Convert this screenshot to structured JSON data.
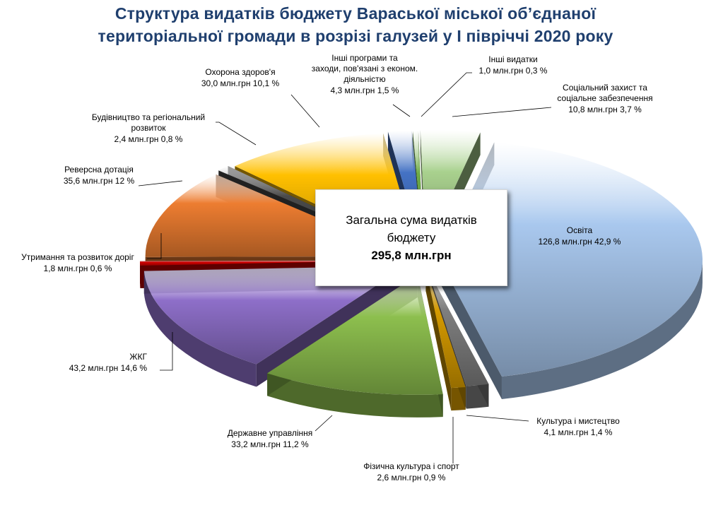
{
  "chart_data": {
    "type": "pie",
    "title": [
      "Структура видатків бюджету Вараської міської об’єднаної",
      "територіальної громади в розрізі галузей у  І півріччі 2020 року"
    ],
    "center_label": {
      "line1": "Загальна  сума видатків",
      "line2": "бюджету",
      "total": "295,8 млн.грн"
    },
    "slices": [
      {
        "name": "Освіта",
        "value": 126.8,
        "percent": 42.9,
        "value_label": "126,8 млн.грн   42,9 %",
        "color": "#a9c8ee"
      },
      {
        "name": "Культура і мистецтво",
        "value": 4.1,
        "percent": 1.4,
        "value_label": "4,1 млн.грн   1,4 %",
        "color": "#7f7f7f"
      },
      {
        "name": "Фізична культура і спорт",
        "value": 2.6,
        "percent": 0.9,
        "value_label": "2,6 млн.грн   0,9 %",
        "color": "#d69b00"
      },
      {
        "name": "Державне управління",
        "value": 33.2,
        "percent": 11.2,
        "value_label": "33,2 млн.грн   11,2 %",
        "color": "#8dbf4e"
      },
      {
        "name": "ЖКГ",
        "value": 43.2,
        "percent": 14.6,
        "value_label": "43,2 млн.грн  14,6 %",
        "color": "#8e6fc9"
      },
      {
        "name": "Утримання та розвиток доріг",
        "value": 1.8,
        "percent": 0.6,
        "value_label": "1,8 млн.грн   0,6 %",
        "color": "#d10000"
      },
      {
        "name": "Реверсна дотація",
        "value": 35.6,
        "percent": 12,
        "value_label": "35,6 млн.грн  12 %",
        "color": "#ed7d31"
      },
      {
        "name": "Будівництво та регіональний розвиток",
        "value": 2.4,
        "percent": 0.8,
        "value_label": "2,4 млн.грн   0,8 %",
        "color": "#4a4a4a"
      },
      {
        "name": "Охорона здоров'я",
        "value": 30.0,
        "percent": 10.1,
        "value_label": "30,0 млн.грн  10,1 %",
        "color": "#ffc000"
      },
      {
        "name": "Інші програми та заходи, пов'язані з економ. діяльністю",
        "value": 4.3,
        "percent": 1.5,
        "value_label": "4,3 млн.грн   1,5 %",
        "color": "#4472c4"
      },
      {
        "name": "Інші видатки",
        "value": 1.0,
        "percent": 0.3,
        "value_label": "1,0 млн.грн  0,3 %",
        "color": "#70ad47"
      },
      {
        "name": "Соціальний захист та соціальне забезпечення",
        "value": 10.8,
        "percent": 3.7,
        "value_label": "10,8  млн.грн 3,7 %",
        "color": "#a9d18e"
      }
    ],
    "label_lines": {
      "Освіта": [
        "Освіта"
      ],
      "Культура і мистецтво": [
        "Культура і мистецтво"
      ],
      "Фізична культура і спорт": [
        "Фізична культура  і  спорт"
      ],
      "Державне управління": [
        "Державне управління"
      ],
      "ЖКГ": [
        "ЖКГ"
      ],
      "Утримання та розвиток доріг": [
        "Утримання та розвиток доріг"
      ],
      "Реверсна дотація": [
        "Реверсна дотація"
      ],
      "Будівництво та регіональний розвиток": [
        "Будівництво та регіональний",
        "розвиток"
      ],
      "Охорона здоров'я": [
        "Охорона здоров'я"
      ],
      "Інші програми та заходи, пов'язані з економ. діяльністю": [
        "Інші програми та",
        "заходи, пов'язані з економ.",
        "діяльністю"
      ],
      "Інші видатки": [
        "Інші видатки"
      ],
      "Соціальний захист та соціальне забезпечення": [
        "Соціальний захист та",
        "соціальне забезпечення"
      ]
    }
  }
}
